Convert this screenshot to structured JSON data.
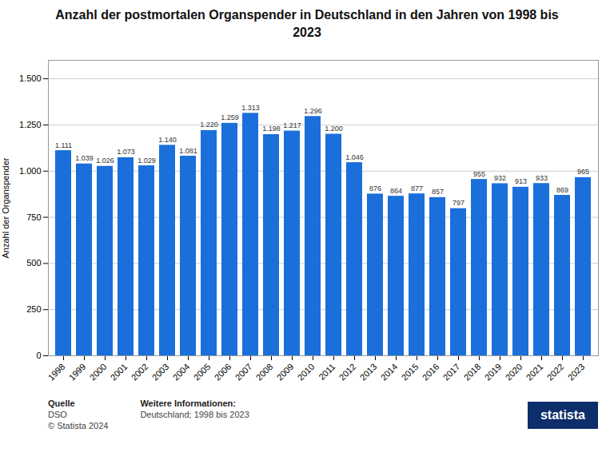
{
  "chart_data": {
    "type": "bar",
    "title": "Anzahl der postmortalen Organspender in Deutschland in den Jahren von 1998 bis\n2023",
    "ylabel": "Anzahl der Organspender",
    "categories": [
      "1998",
      "1999",
      "2000",
      "2001",
      "2002",
      "2003",
      "2004",
      "2005",
      "2006",
      "2007",
      "2008",
      "2009",
      "2010",
      "2011",
      "2012",
      "2013",
      "2014",
      "2015",
      "2016",
      "2017",
      "2018",
      "2019",
      "2020",
      "2021",
      "2022",
      "2023"
    ],
    "values": [
      1111,
      1039,
      1026,
      1073,
      1029,
      1140,
      1081,
      1220,
      1259,
      1313,
      1198,
      1217,
      1296,
      1200,
      1046,
      876,
      864,
      877,
      857,
      797,
      955,
      932,
      913,
      933,
      869,
      965
    ],
    "value_labels": [
      "1.111",
      "1.039",
      "1.026",
      "1.073",
      "1.029",
      "1.140",
      "1.081",
      "1.220",
      "1.259",
      "1.313",
      "1.198",
      "1.217",
      "1.296",
      "1.200",
      "1.046",
      "876",
      "864",
      "877",
      "857",
      "797",
      "955",
      "932",
      "913",
      "933",
      "869",
      "965"
    ],
    "data_labels": true,
    "color": "#1a6fdb",
    "ylim": [
      0,
      1600
    ],
    "yticks": [
      0,
      250,
      500,
      750,
      {
        "value": 1000,
        "label": "1.000"
      },
      {
        "value": 1250,
        "label": "1.250"
      },
      {
        "value": 1500,
        "label": "1.500"
      }
    ],
    "grid": true,
    "annotations": [
      [
        "Quelle",
        "DSO",
        "© Statista 2024"
      ],
      [
        "Weitere Informationen:",
        "Deutschland; 1998 bis 2023"
      ],
      [
        "statista"
      ]
    ]
  }
}
